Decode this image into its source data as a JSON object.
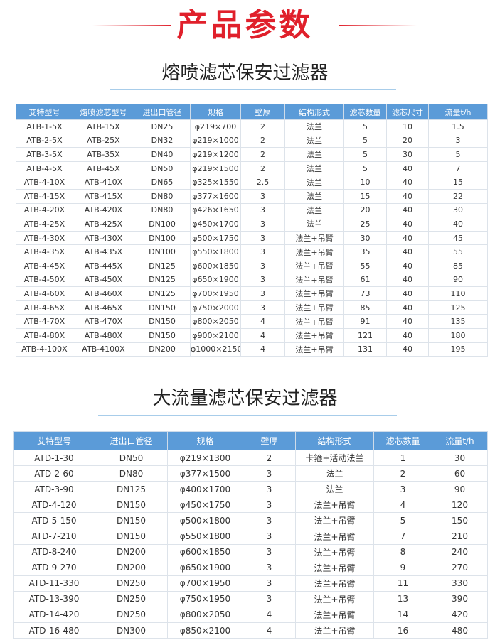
{
  "main_title": "产品参数",
  "accent_color": "#e0202b",
  "header_color": "#5b9bd8",
  "table1": {
    "title": "熔喷滤芯保安过滤器",
    "headers": [
      "艾特型号",
      "熔喷滤芯型号",
      "进出口管径",
      "规格",
      "壁厚",
      "结构形式",
      "滤芯数量",
      "滤芯尺寸",
      "流量t/h"
    ],
    "rows": [
      [
        "ATB-1-5X",
        "ATB-15X",
        "DN25",
        "φ219×700",
        "2",
        "法兰",
        "5",
        "10",
        "1.5"
      ],
      [
        "ATB-2-5X",
        "ATB-25X",
        "DN32",
        "φ219×1000",
        "2",
        "法兰",
        "5",
        "20",
        "3"
      ],
      [
        "ATB-3-5X",
        "ATB-35X",
        "DN40",
        "φ219×1200",
        "2",
        "法兰",
        "5",
        "30",
        "5"
      ],
      [
        "ATB-4-5X",
        "ATB-45X",
        "DN50",
        "φ219×1500",
        "2",
        "法兰",
        "5",
        "40",
        "7"
      ],
      [
        "ATB-4-10X",
        "ATB-410X",
        "DN65",
        "φ325×1550",
        "2.5",
        "法兰",
        "10",
        "40",
        "15"
      ],
      [
        "ATB-4-15X",
        "ATB-415X",
        "DN80",
        "φ377×1600",
        "3",
        "法兰",
        "15",
        "40",
        "22"
      ],
      [
        "ATB-4-20X",
        "ATB-420X",
        "DN80",
        "φ426×1650",
        "3",
        "法兰",
        "20",
        "40",
        "30"
      ],
      [
        "ATB-4-25X",
        "ATB-425X",
        "DN100",
        "φ450×1700",
        "3",
        "法兰",
        "25",
        "40",
        "40"
      ],
      [
        "ATB-4-30X",
        "ATB-430X",
        "DN100",
        "φ500×1750",
        "3",
        "法兰+吊臂",
        "30",
        "40",
        "45"
      ],
      [
        "ATB-4-35X",
        "ATB-435X",
        "DN100",
        "φ550×1800",
        "3",
        "法兰+吊臂",
        "35",
        "40",
        "55"
      ],
      [
        "ATB-4-45X",
        "ATB-445X",
        "DN125",
        "φ600×1850",
        "3",
        "法兰+吊臂",
        "55",
        "40",
        "85"
      ],
      [
        "ATB-4-50X",
        "ATB-450X",
        "DN125",
        "φ650×1900",
        "3",
        "法兰+吊臂",
        "61",
        "40",
        "90"
      ],
      [
        "ATB-4-60X",
        "ATB-460X",
        "DN125",
        "φ700×1950",
        "3",
        "法兰+吊臂",
        "73",
        "40",
        "110"
      ],
      [
        "ATB-4-65X",
        "ATB-465X",
        "DN150",
        "φ750×2000",
        "3",
        "法兰+吊臂",
        "85",
        "40",
        "125"
      ],
      [
        "ATB-4-70X",
        "ATB-470X",
        "DN150",
        "φ800×2050",
        "4",
        "法兰+吊臂",
        "91",
        "40",
        "135"
      ],
      [
        "ATB-4-80X",
        "ATB-480X",
        "DN150",
        "φ900×2100",
        "4",
        "法兰+吊臂",
        "121",
        "40",
        "180"
      ],
      [
        "ATB-4-100X",
        "ATB-4100X",
        "DN200",
        "φ1000×2150",
        "4",
        "法兰+吊臂",
        "131",
        "40",
        "195"
      ]
    ]
  },
  "table2": {
    "title": "大流量滤芯保安过滤器",
    "headers": [
      "艾特型号",
      "进出口管径",
      "规格",
      "壁厚",
      "结构形式",
      "滤芯数量",
      "流量t/h"
    ],
    "rows": [
      [
        "ATD-1-30",
        "DN50",
        "φ219×1300",
        "2",
        "卡箍+活动法兰",
        "1",
        "30"
      ],
      [
        "ATD-2-60",
        "DN80",
        "φ377×1500",
        "3",
        "法兰",
        "2",
        "60"
      ],
      [
        "ATD-3-90",
        "DN125",
        "φ400×1700",
        "3",
        "法兰",
        "3",
        "90"
      ],
      [
        "ATD-4-120",
        "DN150",
        "φ450×1750",
        "3",
        "法兰+吊臂",
        "4",
        "120"
      ],
      [
        "ATD-5-150",
        "DN150",
        "φ500×1800",
        "3",
        "法兰+吊臂",
        "5",
        "150"
      ],
      [
        "ATD-7-210",
        "DN150",
        "φ550×1800",
        "3",
        "法兰+吊臂",
        "7",
        "210"
      ],
      [
        "ATD-8-240",
        "DN200",
        "φ600×1850",
        "3",
        "法兰+吊臂",
        "8",
        "240"
      ],
      [
        "ATD-9-270",
        "DN200",
        "φ650×1900",
        "3",
        "法兰+吊臂",
        "9",
        "270"
      ],
      [
        "ATD-11-330",
        "DN250",
        "φ700×1950",
        "3",
        "法兰+吊臂",
        "11",
        "330"
      ],
      [
        "ATD-13-390",
        "DN250",
        "φ750×1950",
        "3",
        "法兰+吊臂",
        "13",
        "390"
      ],
      [
        "ATD-14-420",
        "DN250",
        "φ800×2050",
        "4",
        "法兰+吊臂",
        "14",
        "420"
      ],
      [
        "ATD-16-480",
        "DN300",
        "φ850×2100",
        "4",
        "法兰+吊臂",
        "16",
        "480"
      ]
    ]
  }
}
